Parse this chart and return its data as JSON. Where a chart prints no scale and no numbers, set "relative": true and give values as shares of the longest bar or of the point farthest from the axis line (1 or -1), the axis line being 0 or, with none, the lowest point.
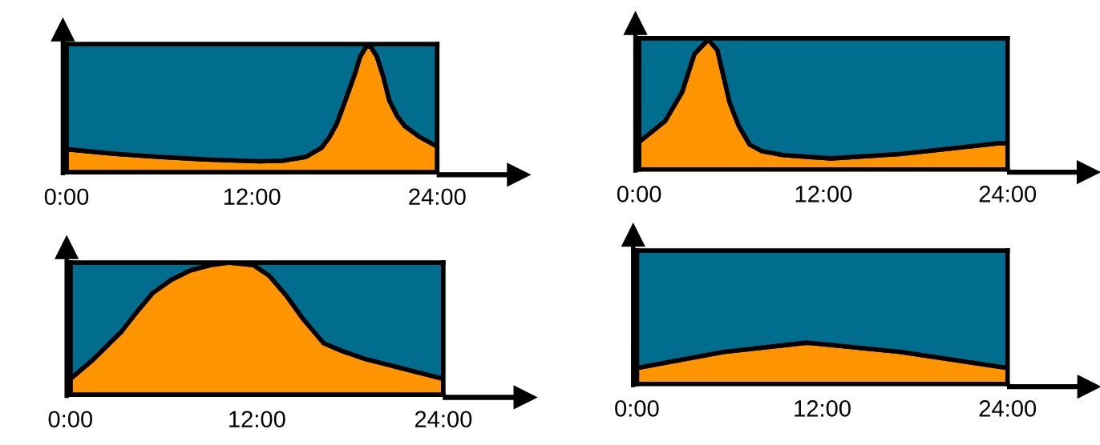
{
  "chart_data": [
    {
      "type": "area",
      "stacked": true,
      "relative": true,
      "xlim": [
        0,
        24
      ],
      "xticks": [
        {
          "value": 0,
          "label": "0:00"
        },
        {
          "value": 12,
          "label": "12:00"
        },
        {
          "value": 24,
          "label": "24:00"
        }
      ],
      "tick_labels": "x",
      "x": [
        0,
        3,
        6,
        9,
        12.5,
        14,
        15.5,
        16.5,
        17,
        17.5,
        18.2,
        18.7,
        19,
        19.4,
        19.7,
        20.1,
        20.5,
        20.9,
        21.4,
        21.9,
        22.8,
        24
      ],
      "series": [
        {
          "color": "#fe9500",
          "values": [
            0.18,
            0.145,
            0.12,
            0.1,
            0.085,
            0.09,
            0.12,
            0.19,
            0.27,
            0.38,
            0.61,
            0.78,
            0.9,
            0.98,
            0.98,
            0.9,
            0.75,
            0.56,
            0.44,
            0.36,
            0.28,
            0.2
          ]
        },
        {
          "color": "#016d8e",
          "values": [
            0.82,
            0.855,
            0.88,
            0.9,
            0.915,
            0.91,
            0.88,
            0.81,
            0.73,
            0.62,
            0.39,
            0.22,
            0.1,
            0.02,
            0.02,
            0.1,
            0.25,
            0.44,
            0.56,
            0.64,
            0.72,
            0.8
          ]
        }
      ]
    },
    {
      "type": "area",
      "stacked": true,
      "relative": true,
      "xlim": [
        0,
        24
      ],
      "xticks": [
        {
          "value": 0,
          "label": "0:00"
        },
        {
          "value": 12,
          "label": "12:00"
        },
        {
          "value": 24,
          "label": "24:00"
        }
      ],
      "tick_labels": "x",
      "x": [
        0,
        1.7,
        2.8,
        3.6,
        4.5,
        5.1,
        5.9,
        6.5,
        7.2,
        8,
        9.4,
        12.5,
        17.1,
        23.4,
        24
      ],
      "series": [
        {
          "color": "#fe9500",
          "values": [
            0.21,
            0.37,
            0.59,
            0.88,
            0.99,
            0.91,
            0.51,
            0.33,
            0.19,
            0.14,
            0.11,
            0.085,
            0.12,
            0.2,
            0.2
          ]
        },
        {
          "color": "#016d8e",
          "values": [
            0.79,
            0.63,
            0.41,
            0.12,
            0.01,
            0.09,
            0.49,
            0.67,
            0.81,
            0.86,
            0.89,
            0.915,
            0.88,
            0.8,
            0.8
          ]
        }
      ]
    },
    {
      "type": "area",
      "stacked": true,
      "relative": true,
      "xlim": [
        0,
        24
      ],
      "xticks": [
        {
          "value": 0,
          "label": "0:00"
        },
        {
          "value": 12,
          "label": "12:00"
        },
        {
          "value": 24,
          "label": "24:00"
        }
      ],
      "tick_labels": "x",
      "x": [
        0,
        1.5,
        3.3,
        4.3,
        5.3,
        6.5,
        7.7,
        9,
        10.2,
        11.8,
        12.8,
        13.9,
        15,
        16.3,
        17.5,
        19,
        24
      ],
      "series": [
        {
          "color": "#fe9500",
          "values": [
            0.12,
            0.27,
            0.48,
            0.63,
            0.77,
            0.87,
            0.94,
            0.98,
            1.0,
            0.98,
            0.9,
            0.75,
            0.57,
            0.39,
            0.33,
            0.27,
            0.12
          ]
        },
        {
          "color": "#016d8e",
          "values": [
            0.88,
            0.73,
            0.52,
            0.37,
            0.23,
            0.13,
            0.06,
            0.02,
            0.0,
            0.02,
            0.1,
            0.25,
            0.43,
            0.61,
            0.67,
            0.73,
            0.88
          ]
        }
      ]
    },
    {
      "type": "area",
      "stacked": true,
      "relative": true,
      "xlim": [
        0,
        24
      ],
      "xticks": [
        {
          "value": 0,
          "label": "0:00"
        },
        {
          "value": 12,
          "label": "12:00"
        },
        {
          "value": 24,
          "label": "24:00"
        }
      ],
      "tick_labels": "x",
      "x": [
        0,
        5.6,
        11,
        17.1,
        24
      ],
      "series": [
        {
          "color": "#fe9500",
          "values": [
            0.12,
            0.24,
            0.31,
            0.24,
            0.12
          ]
        },
        {
          "color": "#016d8e",
          "values": [
            0.88,
            0.76,
            0.69,
            0.76,
            0.88
          ]
        }
      ]
    }
  ]
}
